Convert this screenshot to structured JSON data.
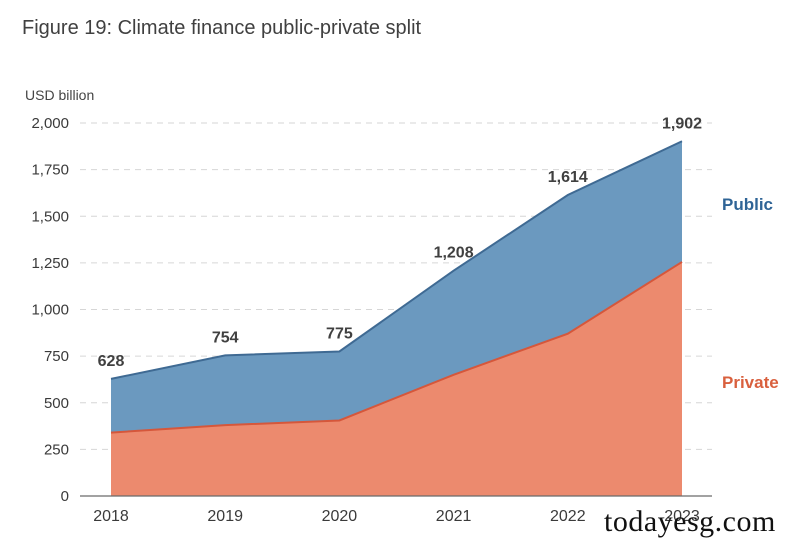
{
  "title": "Figure 19: Climate finance public-private split",
  "watermark": "todayesg.com",
  "colors": {
    "public": "#6b99bf",
    "public_line": "#3f6a93",
    "public_label": "#2f6496",
    "private": "#ec8a6e",
    "private_line": "#d5573b",
    "private_label": "#d9603e",
    "grid": "#d6d6d6",
    "axis": "#6a6a6a"
  },
  "chart_data": {
    "type": "area",
    "stacked": true,
    "title": "Figure 19: Climate finance public-private split",
    "ylabel": "USD billion",
    "xlabel": "",
    "ylim": [
      0,
      2000
    ],
    "yticks": [
      0,
      250,
      500,
      750,
      1000,
      1250,
      1500,
      1750,
      2000
    ],
    "ytick_labels": [
      "0",
      "250",
      "500",
      "750",
      "1,000",
      "1,250",
      "1,500",
      "1,750",
      "2,000"
    ],
    "categories": [
      "2018",
      "2019",
      "2020",
      "2021",
      "2022",
      "2023"
    ],
    "series": [
      {
        "name": "Private",
        "values": [
          340,
          380,
          405,
          650,
          870,
          1255
        ]
      },
      {
        "name": "Public",
        "values": [
          288,
          374,
          370,
          558,
          744,
          647
        ]
      }
    ],
    "totals": [
      628,
      754,
      775,
      1208,
      1614,
      1902
    ],
    "total_labels": [
      "628",
      "754",
      "775",
      "1,208",
      "1,614",
      "1,902"
    ],
    "legend": "right",
    "grid": true
  }
}
